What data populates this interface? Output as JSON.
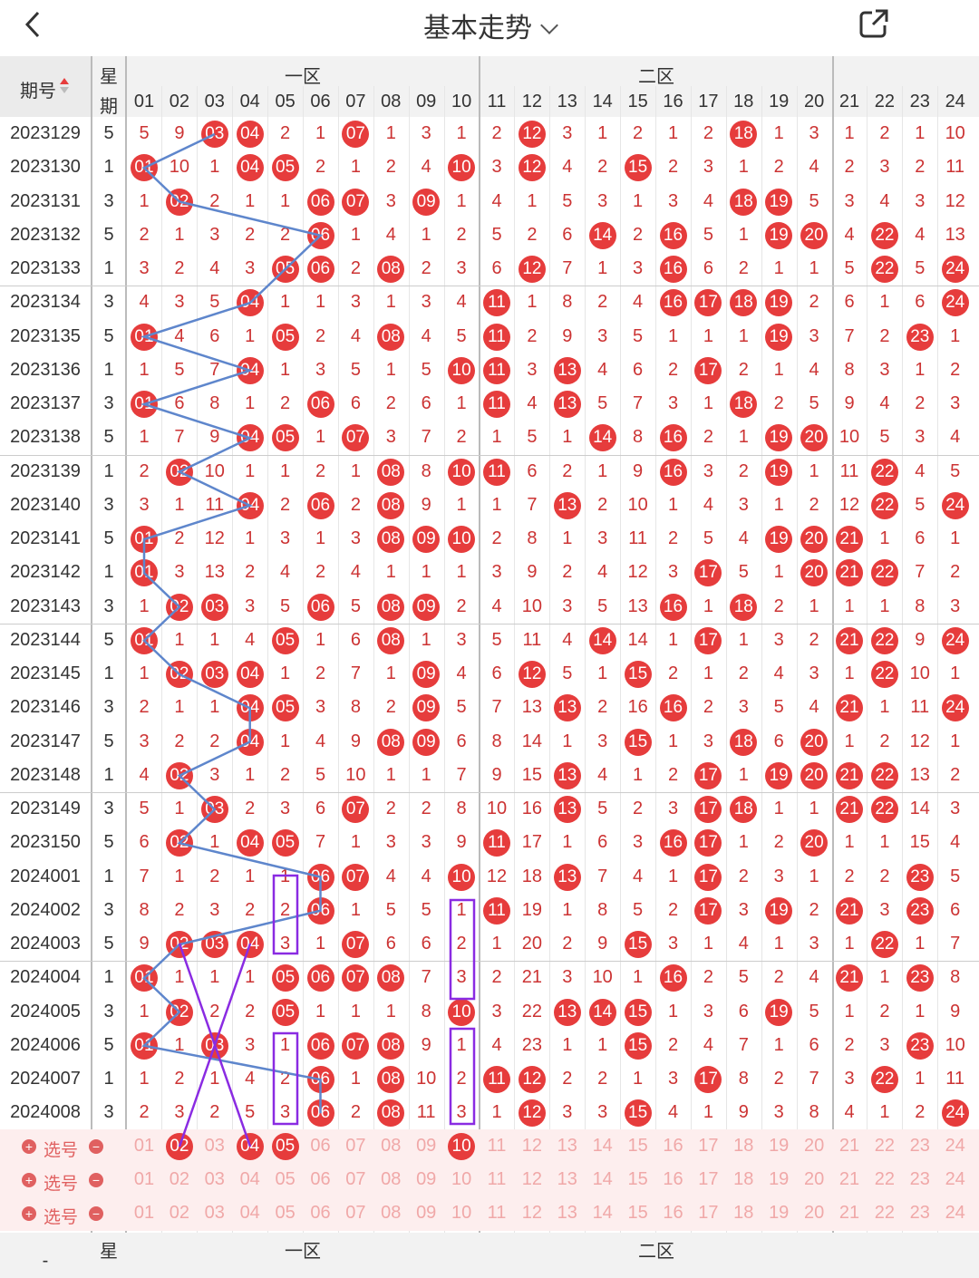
{
  "header": {
    "title": "基本走势"
  },
  "table": {
    "period_label": "期号",
    "week_label_top": "星",
    "week_label_bottom": "期",
    "zones": [
      "一区",
      "二区"
    ],
    "columns": [
      "01",
      "02",
      "03",
      "04",
      "05",
      "06",
      "07",
      "08",
      "09",
      "10",
      "11",
      "12",
      "13",
      "14",
      "15",
      "16",
      "17",
      "18",
      "19",
      "20",
      "21",
      "22",
      "23",
      "24"
    ],
    "rows": [
      {
        "p": "2023129",
        "w": "5",
        "v": [
          "5",
          "9",
          "03",
          "04",
          "2",
          "1",
          "07",
          "1",
          "3",
          "1",
          "2",
          "12",
          "3",
          "1",
          "2",
          "1",
          "2",
          "18",
          "1",
          "3",
          "1",
          "2",
          "1",
          "10"
        ]
      },
      {
        "p": "2023130",
        "w": "1",
        "v": [
          "01",
          "10",
          "1",
          "04",
          "05",
          "2",
          "1",
          "2",
          "4",
          "10",
          "3",
          "12",
          "4",
          "2",
          "15",
          "2",
          "3",
          "1",
          "2",
          "4",
          "2",
          "3",
          "2",
          "11"
        ]
      },
      {
        "p": "2023131",
        "w": "3",
        "v": [
          "1",
          "02",
          "2",
          "1",
          "1",
          "06",
          "07",
          "3",
          "09",
          "1",
          "4",
          "1",
          "5",
          "3",
          "1",
          "3",
          "4",
          "18",
          "19",
          "5",
          "3",
          "4",
          "3",
          "12"
        ]
      },
      {
        "p": "2023132",
        "w": "5",
        "v": [
          "2",
          "1",
          "3",
          "2",
          "2",
          "06",
          "1",
          "4",
          "1",
          "2",
          "5",
          "2",
          "6",
          "14",
          "2",
          "16",
          "5",
          "1",
          "19",
          "20",
          "4",
          "22",
          "4",
          "13"
        ]
      },
      {
        "p": "2023133",
        "w": "1",
        "v": [
          "3",
          "2",
          "4",
          "3",
          "05",
          "06",
          "2",
          "08",
          "2",
          "3",
          "6",
          "12",
          "7",
          "1",
          "3",
          "16",
          "6",
          "2",
          "1",
          "1",
          "5",
          "22",
          "5",
          "24"
        ]
      },
      {
        "p": "2023134",
        "w": "3",
        "v": [
          "4",
          "3",
          "5",
          "04",
          "1",
          "1",
          "3",
          "1",
          "3",
          "4",
          "11",
          "1",
          "8",
          "2",
          "4",
          "16",
          "17",
          "18",
          "19",
          "2",
          "6",
          "1",
          "6",
          "24"
        ]
      },
      {
        "p": "2023135",
        "w": "5",
        "v": [
          "01",
          "4",
          "6",
          "1",
          "05",
          "2",
          "4",
          "08",
          "4",
          "5",
          "11",
          "2",
          "9",
          "3",
          "5",
          "1",
          "1",
          "1",
          "19",
          "3",
          "7",
          "2",
          "23",
          "1"
        ]
      },
      {
        "p": "2023136",
        "w": "1",
        "v": [
          "1",
          "5",
          "7",
          "04",
          "1",
          "3",
          "5",
          "1",
          "5",
          "10",
          "11",
          "3",
          "13",
          "4",
          "6",
          "2",
          "17",
          "2",
          "1",
          "4",
          "8",
          "3",
          "1",
          "2"
        ]
      },
      {
        "p": "2023137",
        "w": "3",
        "v": [
          "01",
          "6",
          "8",
          "1",
          "2",
          "06",
          "6",
          "2",
          "6",
          "1",
          "11",
          "4",
          "13",
          "5",
          "7",
          "3",
          "1",
          "18",
          "2",
          "5",
          "9",
          "4",
          "2",
          "3"
        ]
      },
      {
        "p": "2023138",
        "w": "5",
        "v": [
          "1",
          "7",
          "9",
          "04",
          "05",
          "1",
          "07",
          "3",
          "7",
          "2",
          "1",
          "5",
          "1",
          "14",
          "8",
          "16",
          "2",
          "1",
          "19",
          "20",
          "10",
          "5",
          "3",
          "4"
        ]
      },
      {
        "p": "2023139",
        "w": "1",
        "v": [
          "2",
          "02",
          "10",
          "1",
          "1",
          "2",
          "1",
          "08",
          "8",
          "10",
          "11",
          "6",
          "2",
          "1",
          "9",
          "16",
          "3",
          "2",
          "19",
          "1",
          "11",
          "22",
          "4",
          "5"
        ]
      },
      {
        "p": "2023140",
        "w": "3",
        "v": [
          "3",
          "1",
          "11",
          "04",
          "2",
          "06",
          "2",
          "08",
          "9",
          "1",
          "1",
          "7",
          "13",
          "2",
          "10",
          "1",
          "4",
          "3",
          "1",
          "2",
          "12",
          "22",
          "5",
          "24"
        ]
      },
      {
        "p": "2023141",
        "w": "5",
        "v": [
          "01",
          "2",
          "12",
          "1",
          "3",
          "1",
          "3",
          "08",
          "09",
          "10",
          "2",
          "8",
          "1",
          "3",
          "11",
          "2",
          "5",
          "4",
          "19",
          "20",
          "21",
          "1",
          "6",
          "1"
        ]
      },
      {
        "p": "2023142",
        "w": "1",
        "v": [
          "01",
          "3",
          "13",
          "2",
          "4",
          "2",
          "4",
          "1",
          "1",
          "1",
          "3",
          "9",
          "2",
          "4",
          "12",
          "3",
          "17",
          "5",
          "1",
          "20",
          "21",
          "22",
          "7",
          "2"
        ]
      },
      {
        "p": "2023143",
        "w": "3",
        "v": [
          "1",
          "02",
          "03",
          "3",
          "5",
          "06",
          "5",
          "08",
          "09",
          "2",
          "4",
          "10",
          "3",
          "5",
          "13",
          "16",
          "1",
          "18",
          "2",
          "1",
          "1",
          "1",
          "8",
          "3"
        ]
      },
      {
        "p": "2023144",
        "w": "5",
        "v": [
          "01",
          "1",
          "1",
          "4",
          "05",
          "1",
          "6",
          "08",
          "1",
          "3",
          "5",
          "11",
          "4",
          "14",
          "14",
          "1",
          "17",
          "1",
          "3",
          "2",
          "21",
          "22",
          "9",
          "24"
        ]
      },
      {
        "p": "2023145",
        "w": "1",
        "v": [
          "1",
          "02",
          "03",
          "04",
          "1",
          "2",
          "7",
          "1",
          "09",
          "4",
          "6",
          "12",
          "5",
          "1",
          "15",
          "2",
          "1",
          "2",
          "4",
          "3",
          "1",
          "22",
          "10",
          "1"
        ]
      },
      {
        "p": "2023146",
        "w": "3",
        "v": [
          "2",
          "1",
          "1",
          "04",
          "05",
          "3",
          "8",
          "2",
          "09",
          "5",
          "7",
          "13",
          "13",
          "2",
          "16",
          "16",
          "2",
          "3",
          "5",
          "4",
          "21",
          "1",
          "11",
          "24"
        ]
      },
      {
        "p": "2023147",
        "w": "5",
        "v": [
          "3",
          "2",
          "2",
          "04",
          "1",
          "4",
          "9",
          "08",
          "09",
          "6",
          "8",
          "14",
          "1",
          "3",
          "15",
          "1",
          "3",
          "18",
          "6",
          "20",
          "1",
          "2",
          "12",
          "1"
        ]
      },
      {
        "p": "2023148",
        "w": "1",
        "v": [
          "4",
          "02",
          "3",
          "1",
          "2",
          "5",
          "10",
          "1",
          "1",
          "7",
          "9",
          "15",
          "13",
          "4",
          "1",
          "2",
          "17",
          "1",
          "19",
          "20",
          "21",
          "22",
          "13",
          "2"
        ]
      },
      {
        "p": "2023149",
        "w": "3",
        "v": [
          "5",
          "1",
          "03",
          "2",
          "3",
          "6",
          "07",
          "2",
          "2",
          "8",
          "10",
          "16",
          "13",
          "5",
          "2",
          "3",
          "17",
          "18",
          "1",
          "1",
          "21",
          "22",
          "14",
          "3"
        ]
      },
      {
        "p": "2023150",
        "w": "5",
        "v": [
          "6",
          "02",
          "1",
          "04",
          "05",
          "7",
          "1",
          "3",
          "3",
          "9",
          "11",
          "17",
          "1",
          "6",
          "3",
          "16",
          "17",
          "1",
          "2",
          "20",
          "1",
          "1",
          "15",
          "4"
        ]
      },
      {
        "p": "2024001",
        "w": "1",
        "v": [
          "7",
          "1",
          "2",
          "1",
          "1",
          "06",
          "07",
          "4",
          "4",
          "10",
          "12",
          "18",
          "13",
          "7",
          "4",
          "1",
          "17",
          "2",
          "3",
          "1",
          "2",
          "2",
          "23",
          "5"
        ]
      },
      {
        "p": "2024002",
        "w": "3",
        "v": [
          "8",
          "2",
          "3",
          "2",
          "2",
          "06",
          "1",
          "5",
          "5",
          "1",
          "11",
          "19",
          "1",
          "8",
          "5",
          "2",
          "17",
          "3",
          "19",
          "2",
          "21",
          "3",
          "23",
          "6"
        ]
      },
      {
        "p": "2024003",
        "w": "5",
        "v": [
          "9",
          "02",
          "03",
          "04",
          "3",
          "1",
          "07",
          "6",
          "6",
          "2",
          "1",
          "20",
          "2",
          "9",
          "15",
          "3",
          "1",
          "4",
          "1",
          "3",
          "1",
          "22",
          "1",
          "7"
        ]
      },
      {
        "p": "2024004",
        "w": "1",
        "v": [
          "01",
          "1",
          "1",
          "1",
          "05",
          "06",
          "07",
          "08",
          "7",
          "3",
          "2",
          "21",
          "3",
          "10",
          "1",
          "16",
          "2",
          "5",
          "2",
          "4",
          "21",
          "1",
          "23",
          "8"
        ]
      },
      {
        "p": "2024005",
        "w": "3",
        "v": [
          "1",
          "02",
          "2",
          "2",
          "05",
          "1",
          "1",
          "1",
          "8",
          "10",
          "3",
          "22",
          "13",
          "14",
          "15",
          "1",
          "3",
          "6",
          "19",
          "5",
          "1",
          "2",
          "1",
          "9"
        ]
      },
      {
        "p": "2024006",
        "w": "5",
        "v": [
          "01",
          "1",
          "03",
          "3",
          "1",
          "06",
          "07",
          "08",
          "9",
          "1",
          "4",
          "23",
          "1",
          "1",
          "15",
          "2",
          "4",
          "7",
          "1",
          "6",
          "2",
          "3",
          "23",
          "10"
        ]
      },
      {
        "p": "2024007",
        "w": "1",
        "v": [
          "1",
          "2",
          "1",
          "4",
          "2",
          "06",
          "1",
          "08",
          "10",
          "2",
          "11",
          "12",
          "2",
          "2",
          "1",
          "3",
          "17",
          "8",
          "2",
          "7",
          "3",
          "22",
          "1",
          "11"
        ]
      },
      {
        "p": "2024008",
        "w": "3",
        "v": [
          "2",
          "3",
          "2",
          "5",
          "3",
          "06",
          "2",
          "08",
          "11",
          "3",
          "1",
          "12",
          "3",
          "3",
          "15",
          "4",
          "1",
          "9",
          "3",
          "8",
          "4",
          "1",
          "2",
          "24"
        ]
      }
    ],
    "select_rows": [
      {
        "label": "选号",
        "plus": "+",
        "minus": "−",
        "picked": [
          "02",
          "04",
          "05",
          "10"
        ]
      },
      {
        "label": "选号",
        "plus": "+",
        "minus": "−",
        "picked": []
      },
      {
        "label": "选号",
        "plus": "+",
        "minus": "−",
        "picked": []
      }
    ],
    "footer": {
      "week_label_top": "星",
      "dash": "-"
    }
  },
  "colors": {
    "red": "#e63c3c",
    "dark_red": "#9e1e1e",
    "blue": "#5e86cc",
    "navy": "#1f3f80",
    "trend_line": "#5e86cc",
    "mark_purple": "#8a2be2"
  }
}
